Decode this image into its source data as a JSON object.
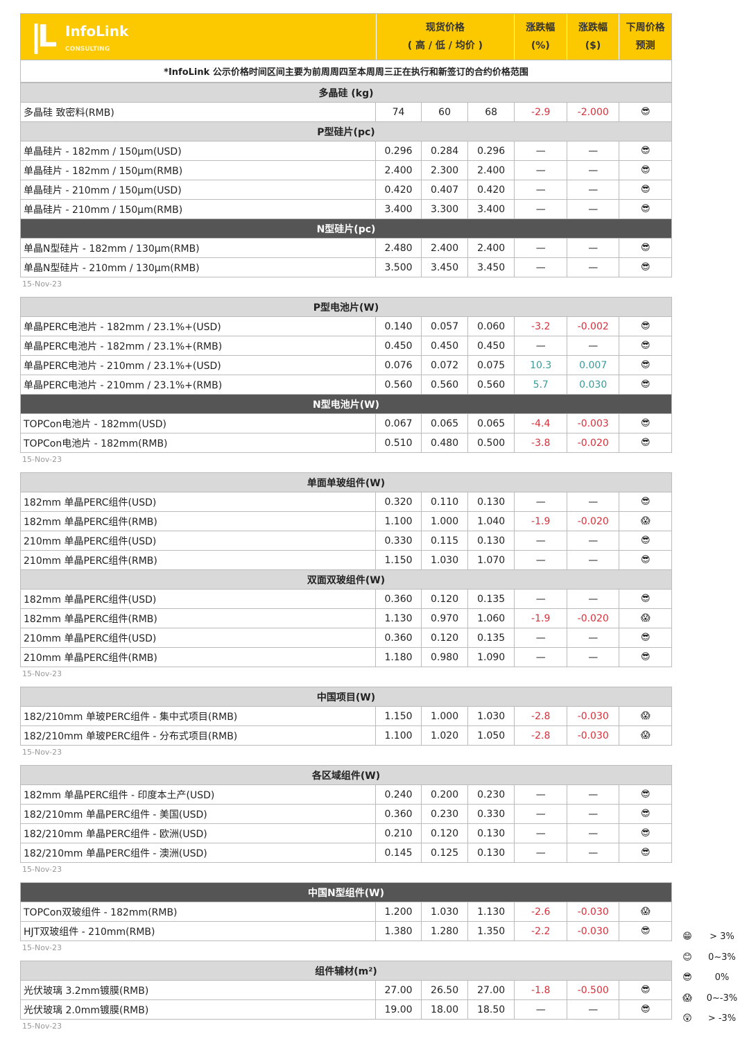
{
  "header": {
    "logo": "InfoLink",
    "logo_sub": "CONSULTING",
    "spot_price": "现货价格",
    "spot_sub": "( 高 / 低 / 均价 )",
    "chg_pct": "涨跌幅",
    "chg_pct_unit": "(%)",
    "chg_usd": "涨跌幅",
    "chg_usd_unit": "($)",
    "forecast": "下周价格",
    "forecast_sub": "预测"
  },
  "note": "*InfoLink 公示价格时间区间主要为前周周四至本周周三正在执行和新签订的合约价格范围",
  "icons": {
    "0%": "😎",
    "0~-3%": "😱",
    ">3%": "😁",
    "0~3%": "😊",
    ">-3%": "😲"
  },
  "colors": {
    "header": "#fcc800",
    "down": "#d6303a",
    "up": "#3a9a9a",
    "dark_header": "#555555"
  },
  "sections": [
    {
      "date": "15-Nov-23",
      "groups": [
        {
          "title": "多晶硅 (kg)",
          "dark": false,
          "rows": [
            [
              "多晶硅 致密料(RMB)",
              "74",
              "60",
              "68",
              "-2.9",
              "-2.000",
              "0%"
            ]
          ]
        },
        {
          "title": "P型硅片(pc)",
          "dark": false,
          "rows": [
            [
              "单晶硅片 - 182mm / 150μm(USD)",
              "0.296",
              "0.284",
              "0.296",
              "—",
              "—",
              "0%"
            ],
            [
              "单晶硅片 - 182mm / 150μm(RMB)",
              "2.400",
              "2.300",
              "2.400",
              "—",
              "—",
              "0%"
            ],
            [
              "单晶硅片 - 210mm / 150μm(USD)",
              "0.420",
              "0.407",
              "0.420",
              "—",
              "—",
              "0%"
            ],
            [
              "单晶硅片 - 210mm / 150μm(RMB)",
              "3.400",
              "3.300",
              "3.400",
              "—",
              "—",
              "0%"
            ]
          ]
        },
        {
          "title": "N型硅片(pc)",
          "dark": true,
          "rows": [
            [
              "单晶N型硅片 - 182mm / 130μm(RMB)",
              "2.480",
              "2.400",
              "2.400",
              "—",
              "—",
              "0%"
            ],
            [
              "单晶N型硅片 - 210mm / 130μm(RMB)",
              "3.500",
              "3.450",
              "3.450",
              "—",
              "—",
              "0%"
            ]
          ]
        }
      ]
    },
    {
      "date": "15-Nov-23",
      "groups": [
        {
          "title": "P型电池片(W)",
          "dark": false,
          "rows": [
            [
              "单晶PERC电池片 - 182mm / 23.1%+(USD)",
              "0.140",
              "0.057",
              "0.060",
              "-3.2",
              "-0.002",
              "0%"
            ],
            [
              "单晶PERC电池片 - 182mm / 23.1%+(RMB)",
              "0.450",
              "0.450",
              "0.450",
              "—",
              "—",
              "0%"
            ],
            [
              "单晶PERC电池片 - 210mm / 23.1%+(USD)",
              "0.076",
              "0.072",
              "0.075",
              "10.3",
              "0.007",
              "0%"
            ],
            [
              "单晶PERC电池片 - 210mm / 23.1%+(RMB)",
              "0.560",
              "0.560",
              "0.560",
              "5.7",
              "0.030",
              "0%"
            ]
          ]
        },
        {
          "title": "N型电池片(W)",
          "dark": true,
          "rows": [
            [
              "TOPCon电池片 - 182mm(USD)",
              "0.067",
              "0.065",
              "0.065",
              "-4.4",
              "-0.003",
              "0%"
            ],
            [
              "TOPCon电池片 - 182mm(RMB)",
              "0.510",
              "0.480",
              "0.500",
              "-3.8",
              "-0.020",
              "0%"
            ]
          ]
        }
      ]
    },
    {
      "date": "15-Nov-23",
      "groups": [
        {
          "title": "单面单玻组件(W)",
          "dark": false,
          "rows": [
            [
              "182mm 单晶PERC组件(USD)",
              "0.320",
              "0.110",
              "0.130",
              "—",
              "—",
              "0%"
            ],
            [
              "182mm 单晶PERC组件(RMB)",
              "1.100",
              "1.000",
              "1.040",
              "-1.9",
              "-0.020",
              "0~-3%"
            ],
            [
              "210mm 单晶PERC组件(USD)",
              "0.330",
              "0.115",
              "0.130",
              "—",
              "—",
              "0%"
            ],
            [
              "210mm 单晶PERC组件(RMB)",
              "1.150",
              "1.030",
              "1.070",
              "—",
              "—",
              "0%"
            ]
          ]
        },
        {
          "title": "双面双玻组件(W)",
          "dark": false,
          "rows": [
            [
              "182mm 单晶PERC组件(USD)",
              "0.360",
              "0.120",
              "0.135",
              "—",
              "—",
              "0%"
            ],
            [
              "182mm 单晶PERC组件(RMB)",
              "1.130",
              "0.970",
              "1.060",
              "-1.9",
              "-0.020",
              "0~-3%"
            ],
            [
              "210mm 单晶PERC组件(USD)",
              "0.360",
              "0.120",
              "0.135",
              "—",
              "—",
              "0%"
            ],
            [
              "210mm 单晶PERC组件(RMB)",
              "1.180",
              "0.980",
              "1.090",
              "—",
              "—",
              "0%"
            ]
          ]
        }
      ]
    },
    {
      "date": "15-Nov-23",
      "groups": [
        {
          "title": "中国项目(W)",
          "dark": false,
          "rows": [
            [
              "182/210mm 单玻PERC组件 - 集中式项目(RMB)",
              "1.150",
              "1.000",
              "1.030",
              "-2.8",
              "-0.030",
              "0~-3%"
            ],
            [
              "182/210mm 单玻PERC组件 - 分布式项目(RMB)",
              "1.100",
              "1.020",
              "1.050",
              "-2.8",
              "-0.030",
              "0~-3%"
            ]
          ]
        }
      ]
    },
    {
      "date": "15-Nov-23",
      "groups": [
        {
          "title": "各区域组件(W)",
          "dark": false,
          "rows": [
            [
              "182mm 单晶PERC组件 - 印度本土产(USD)",
              "0.240",
              "0.200",
              "0.230",
              "—",
              "—",
              "0%"
            ],
            [
              "182/210mm 单晶PERC组件 - 美国(USD)",
              "0.360",
              "0.230",
              "0.330",
              "—",
              "—",
              "0%"
            ],
            [
              "182/210mm 单晶PERC组件 - 欧洲(USD)",
              "0.210",
              "0.120",
              "0.130",
              "—",
              "—",
              "0%"
            ],
            [
              "182/210mm 单晶PERC组件 - 澳洲(USD)",
              "0.145",
              "0.125",
              "0.130",
              "—",
              "—",
              "0%"
            ]
          ]
        }
      ]
    },
    {
      "date": "15-Nov-23",
      "groups": [
        {
          "title": "中国N型组件(W)",
          "dark": true,
          "rows": [
            [
              "TOPCon双玻组件 - 182mm(RMB)",
              "1.200",
              "1.030",
              "1.130",
              "-2.6",
              "-0.030",
              "0~-3%"
            ],
            [
              "HJT双玻组件 - 210mm(RMB)",
              "1.380",
              "1.280",
              "1.350",
              "-2.2",
              "-0.030",
              "0%"
            ]
          ]
        }
      ]
    },
    {
      "date": "15-Nov-23",
      "groups": [
        {
          "title": "组件辅材(m²)",
          "dark": false,
          "rows": [
            [
              "光伏玻璃 3.2mm镀膜(RMB)",
              "27.00",
              "26.50",
              "27.00",
              "-1.8",
              "-0.500",
              "0%"
            ],
            [
              "光伏玻璃 2.0mm镀膜(RMB)",
              "19.00",
              "18.00",
              "18.50",
              "—",
              "—",
              "0%"
            ]
          ]
        }
      ]
    }
  ],
  "legend": [
    {
      "icon": ">3%",
      "label": "> 3%"
    },
    {
      "icon": "0~3%",
      "label": "0~3%"
    },
    {
      "icon": "0%",
      "label": "0%"
    },
    {
      "icon": "0~-3%",
      "label": "0~-3%"
    },
    {
      "icon": ">-3%",
      "label": "> -3%"
    }
  ]
}
